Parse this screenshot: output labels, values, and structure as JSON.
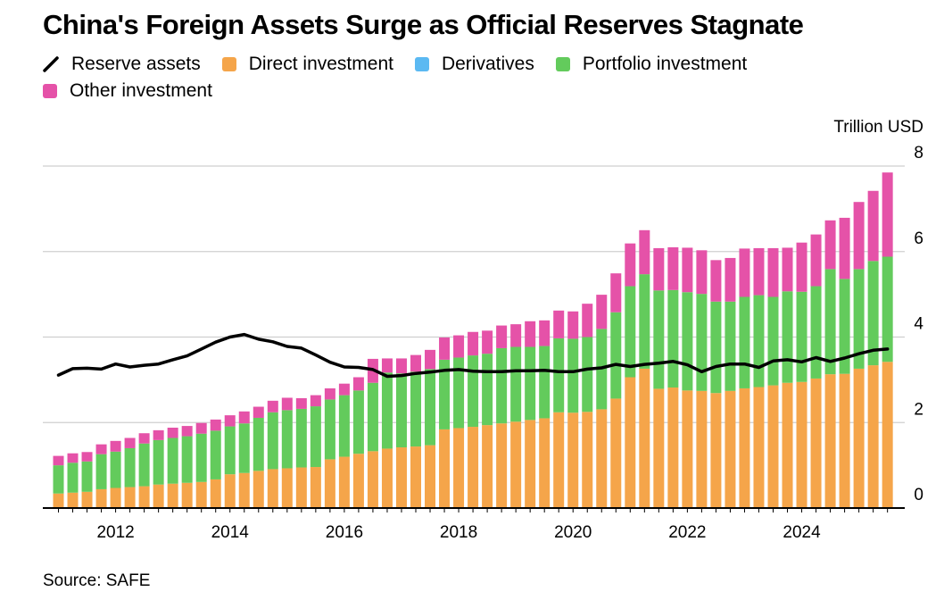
{
  "title": "China's Foreign Assets Surge as Official Reserves Stagnate",
  "source": "Source: SAFE",
  "legend": [
    {
      "label": "Reserve assets",
      "color": "#000000",
      "kind": "line"
    },
    {
      "label": "Direct investment",
      "color": "#F5A54A",
      "kind": "swatch"
    },
    {
      "label": "Derivatives",
      "color": "#5BB9F2",
      "kind": "swatch"
    },
    {
      "label": "Portfolio investment",
      "color": "#63CB5C",
      "kind": "swatch"
    },
    {
      "label": "Other investment",
      "color": "#E552A8",
      "kind": "swatch"
    }
  ],
  "chart_data": {
    "type": "bar",
    "stacked": true,
    "ylabel": "Trillion USD",
    "ylim": [
      0,
      8
    ],
    "yticks": [
      0,
      2,
      4,
      6,
      8
    ],
    "xticks": [
      "2012",
      "2014",
      "2016",
      "2018",
      "2020",
      "2022",
      "2024"
    ],
    "grid": true,
    "legend_position": "top-left",
    "start_quarter": "2011Q1",
    "series": [
      {
        "name": "Direct investment",
        "type": "bar",
        "color": "#F5A54A",
        "values": [
          0.34,
          0.36,
          0.38,
          0.44,
          0.47,
          0.49,
          0.51,
          0.55,
          0.57,
          0.59,
          0.61,
          0.67,
          0.79,
          0.82,
          0.87,
          0.91,
          0.93,
          0.95,
          0.96,
          1.14,
          1.2,
          1.27,
          1.33,
          1.39,
          1.42,
          1.44,
          1.47,
          1.84,
          1.87,
          1.9,
          1.94,
          1.98,
          2.02,
          2.06,
          2.1,
          2.24,
          2.23,
          2.25,
          2.31,
          2.56,
          3.06,
          3.26,
          2.79,
          2.82,
          2.75,
          2.74,
          2.69,
          2.74,
          2.8,
          2.83,
          2.87,
          2.93,
          2.95,
          3.03,
          3.13,
          3.14,
          3.26,
          3.34,
          3.42
        ]
      },
      {
        "name": "Derivatives",
        "type": "bar",
        "color": "#5BB9F2",
        "values": [
          0.0,
          0.0,
          0.0,
          0.0,
          0.0,
          0.0,
          0.0,
          0.0,
          0.0,
          0.0,
          0.0,
          0.0,
          0.0,
          0.0,
          0.0,
          0.0,
          0.0,
          0.0,
          0.0,
          0.0,
          0.0,
          0.0,
          0.0,
          0.0,
          0.0,
          0.0,
          0.0,
          0.0,
          0.0,
          0.0,
          0.0,
          0.0,
          0.0,
          0.0,
          0.0,
          0.0,
          0.0,
          0.0,
          0.0,
          0.0,
          0.0,
          0.0,
          0.0,
          0.0,
          0.0,
          0.0,
          0.0,
          0.0,
          0.0,
          0.0,
          0.0,
          0.0,
          0.0,
          0.0,
          0.0,
          0.0,
          0.0,
          0.0,
          0.0
        ]
      },
      {
        "name": "Portfolio investment",
        "type": "bar",
        "color": "#63CB5C",
        "values": [
          0.66,
          0.7,
          0.71,
          0.82,
          0.85,
          0.91,
          1.0,
          1.04,
          1.07,
          1.09,
          1.13,
          1.14,
          1.12,
          1.16,
          1.24,
          1.33,
          1.36,
          1.37,
          1.42,
          1.4,
          1.44,
          1.48,
          1.6,
          1.78,
          1.73,
          1.75,
          1.78,
          1.63,
          1.65,
          1.67,
          1.67,
          1.76,
          1.75,
          1.71,
          1.69,
          1.73,
          1.73,
          1.75,
          1.88,
          2.02,
          2.13,
          2.21,
          2.3,
          2.28,
          2.3,
          2.27,
          2.14,
          2.09,
          2.14,
          2.15,
          2.07,
          2.14,
          2.11,
          2.16,
          2.46,
          2.22,
          2.33,
          2.44,
          2.46
        ]
      },
      {
        "name": "Other investment",
        "type": "bar",
        "color": "#E552A8",
        "values": [
          0.22,
          0.22,
          0.22,
          0.23,
          0.25,
          0.24,
          0.24,
          0.23,
          0.24,
          0.24,
          0.25,
          0.26,
          0.26,
          0.28,
          0.26,
          0.27,
          0.29,
          0.25,
          0.26,
          0.26,
          0.27,
          0.31,
          0.56,
          0.33,
          0.35,
          0.39,
          0.45,
          0.52,
          0.52,
          0.55,
          0.54,
          0.53,
          0.53,
          0.6,
          0.6,
          0.65,
          0.64,
          0.78,
          0.8,
          0.91,
          1.0,
          1.03,
          0.99,
          1.0,
          1.04,
          1.02,
          0.97,
          1.02,
          1.13,
          1.1,
          1.14,
          1.02,
          1.15,
          1.21,
          1.14,
          1.43,
          1.57,
          1.64,
          1.97
        ]
      },
      {
        "name": "Reserve assets",
        "type": "line",
        "color": "#000000",
        "values": [
          3.11,
          3.26,
          3.27,
          3.25,
          3.37,
          3.3,
          3.34,
          3.37,
          3.47,
          3.56,
          3.72,
          3.88,
          4.0,
          4.06,
          3.95,
          3.89,
          3.78,
          3.74,
          3.58,
          3.41,
          3.3,
          3.29,
          3.24,
          3.08,
          3.1,
          3.15,
          3.18,
          3.22,
          3.24,
          3.2,
          3.19,
          3.19,
          3.21,
          3.21,
          3.22,
          3.19,
          3.19,
          3.25,
          3.28,
          3.36,
          3.31,
          3.36,
          3.39,
          3.43,
          3.35,
          3.19,
          3.31,
          3.37,
          3.37,
          3.29,
          3.44,
          3.47,
          3.42,
          3.52,
          3.43,
          3.51,
          3.61,
          3.69,
          3.72
        ]
      }
    ]
  }
}
